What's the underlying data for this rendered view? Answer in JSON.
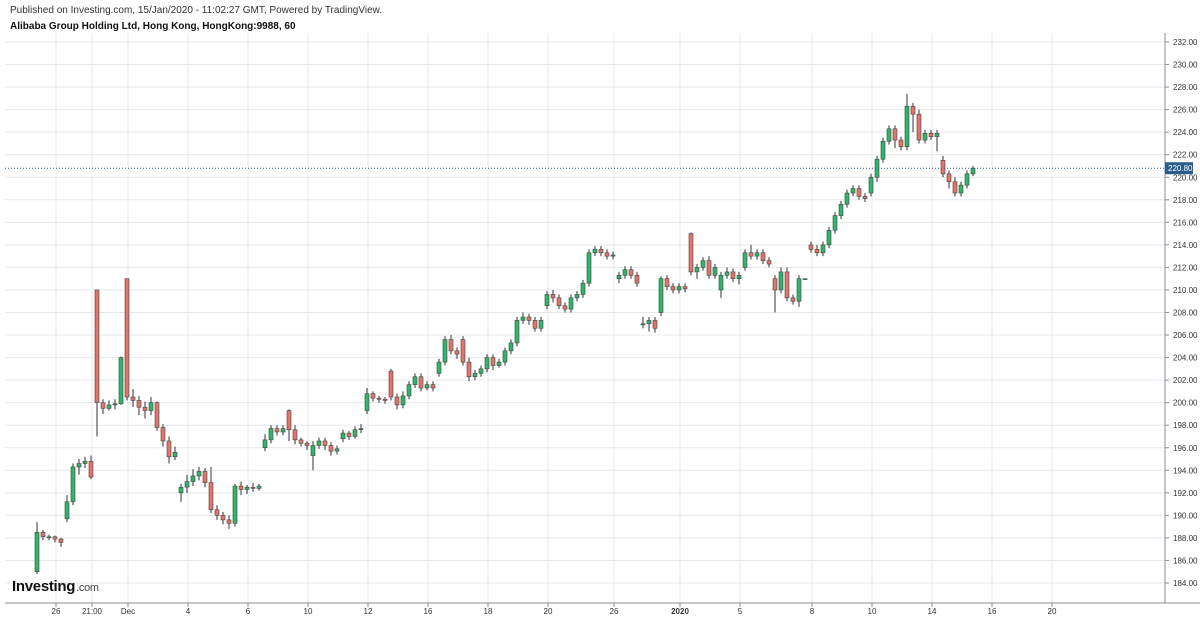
{
  "header": {
    "published": "Published on Investing.com, 15/Jan/2020 - 11:02:27 GMT, Powered by TradingView.",
    "title": "Alibaba Group Holding Ltd, Hong Kong, HongKong:9988, 60"
  },
  "logo": {
    "text": "Investing",
    "suffix": ".com"
  },
  "colors": {
    "up": "#2eb56b",
    "down": "#e4736a",
    "price_line": "#2a5d8a",
    "price_tag_bg": "#2a5d8a",
    "grid": "#e4e9ef",
    "axis": "#8a8f96"
  },
  "chart_data": {
    "type": "candlestick",
    "y_axis": {
      "position": "right",
      "range": [
        183,
        232.5
      ],
      "ticks": [
        "184.00",
        "186.00",
        "188.00",
        "190.00",
        "192.00",
        "194.00",
        "196.00",
        "198.00",
        "200.00",
        "202.00",
        "204.00",
        "206.00",
        "208.00",
        "210.00",
        "212.00",
        "214.00",
        "216.00",
        "218.00",
        "220.00",
        "222.00",
        "224.00",
        "226.00",
        "228.00",
        "230.00",
        "232.00"
      ]
    },
    "x_axis": {
      "ticks": [
        {
          "label": "26",
          "i": 1
        },
        {
          "label": "21:00",
          "i": 7
        },
        {
          "label": "Dec",
          "i": 13
        },
        {
          "label": "4",
          "i": 23
        },
        {
          "label": "6",
          "i": 33
        },
        {
          "label": "10",
          "i": 43
        },
        {
          "label": "12",
          "i": 53
        },
        {
          "label": "16",
          "i": 63
        },
        {
          "label": "18",
          "i": 73
        },
        {
          "label": "20",
          "i": 83
        },
        {
          "label": "26",
          "i": 94
        },
        {
          "label": "2020",
          "i": 105,
          "bold": true
        },
        {
          "label": "5",
          "i": 115
        },
        {
          "label": "8",
          "i": 127
        },
        {
          "label": "10",
          "i": 137
        },
        {
          "label": "14",
          "i": 147
        },
        {
          "label": "16",
          "i": 157
        },
        {
          "label": "20",
          "i": 167
        }
      ]
    },
    "last_price": "220.80",
    "candles": [
      [
        185.0,
        188.5,
        189.4,
        184.8
      ],
      [
        188.5,
        188.1,
        188.7,
        187.8
      ],
      [
        188.1,
        188.1,
        188.3,
        187.8
      ],
      [
        188.1,
        187.9,
        188.2,
        187.6
      ],
      [
        187.9,
        187.6,
        188.0,
        187.2
      ],
      [
        189.7,
        191.2,
        191.8,
        189.4
      ],
      [
        191.2,
        194.3,
        194.6,
        190.9
      ],
      [
        194.3,
        194.6,
        195.0,
        193.6
      ],
      [
        194.6,
        194.8,
        195.2,
        194.2
      ],
      [
        194.8,
        193.4,
        195.3,
        193.2
      ],
      [
        210.0,
        200.0,
        210.0,
        197.0
      ],
      [
        200.0,
        199.5,
        200.3,
        199.0
      ],
      [
        199.5,
        199.8,
        200.2,
        199.3
      ],
      [
        199.8,
        199.9,
        200.3,
        199.4
      ],
      [
        199.9,
        204.0,
        204.1,
        199.8
      ],
      [
        211.0,
        200.5,
        211.0,
        200.2
      ],
      [
        200.5,
        200.2,
        201.2,
        199.6
      ],
      [
        200.2,
        199.6,
        200.6,
        198.9
      ],
      [
        199.6,
        199.3,
        200.1,
        198.6
      ],
      [
        199.3,
        200.0,
        200.5,
        198.9
      ],
      [
        200.0,
        197.8,
        200.1,
        197.5
      ],
      [
        197.8,
        196.6,
        198.1,
        196.1
      ],
      [
        196.6,
        195.2,
        197.0,
        194.6
      ],
      [
        195.2,
        195.6,
        196.1,
        194.9
      ],
      [
        192.0,
        192.5,
        192.8,
        191.2
      ],
      [
        192.5,
        193.0,
        193.6,
        192.0
      ],
      [
        193.0,
        193.5,
        194.1,
        192.6
      ],
      [
        193.5,
        193.9,
        194.3,
        193.1
      ],
      [
        193.9,
        192.9,
        194.2,
        192.5
      ],
      [
        192.9,
        190.5,
        194.3,
        190.2
      ],
      [
        190.5,
        190.0,
        190.9,
        189.6
      ],
      [
        190.0,
        189.6,
        190.3,
        189.2
      ],
      [
        189.6,
        189.3,
        190.0,
        188.8
      ],
      [
        189.3,
        192.6,
        192.8,
        189.0
      ],
      [
        192.6,
        192.3,
        193.0,
        191.8
      ],
      [
        192.3,
        192.5,
        192.7,
        191.9
      ],
      [
        192.5,
        192.4,
        192.9,
        192.1
      ],
      [
        192.4,
        192.6,
        192.8,
        192.2
      ],
      [
        196.0,
        196.7,
        197.2,
        195.7
      ],
      [
        196.7,
        197.7,
        198.0,
        196.4
      ],
      [
        197.7,
        197.4,
        198.0,
        197.1
      ],
      [
        197.4,
        197.7,
        198.0,
        197.1
      ],
      [
        199.3,
        197.6,
        199.4,
        196.6
      ],
      [
        197.6,
        196.7,
        198.0,
        196.3
      ],
      [
        196.7,
        196.4,
        196.9,
        196.1
      ],
      [
        196.4,
        196.2,
        196.6,
        195.8
      ],
      [
        195.3,
        196.2,
        196.6,
        194.0
      ],
      [
        196.2,
        196.6,
        196.9,
        195.9
      ],
      [
        196.6,
        196.2,
        196.9,
        195.8
      ],
      [
        196.2,
        195.7,
        196.5,
        195.3
      ],
      [
        195.7,
        195.9,
        196.2,
        195.4
      ],
      [
        196.8,
        197.3,
        197.6,
        196.5
      ],
      [
        197.3,
        197.0,
        197.5,
        196.7
      ],
      [
        197.0,
        197.6,
        197.9,
        196.8
      ],
      [
        197.6,
        197.7,
        198.1,
        197.3
      ],
      [
        199.3,
        200.8,
        201.3,
        199.0
      ],
      [
        200.8,
        200.4,
        201.0,
        200.1
      ],
      [
        200.4,
        200.3,
        200.6,
        200.0
      ],
      [
        200.3,
        200.2,
        200.5,
        199.9
      ],
      [
        202.8,
        200.5,
        203.0,
        200.2
      ],
      [
        200.5,
        199.8,
        200.8,
        199.4
      ],
      [
        199.8,
        200.6,
        201.0,
        199.5
      ],
      [
        200.6,
        201.6,
        201.9,
        200.3
      ],
      [
        201.6,
        202.3,
        202.6,
        201.3
      ],
      [
        202.3,
        201.3,
        202.6,
        201.0
      ],
      [
        201.3,
        201.6,
        201.9,
        201.1
      ],
      [
        201.6,
        201.3,
        201.9,
        201.0
      ],
      [
        202.6,
        203.6,
        203.9,
        202.3
      ],
      [
        203.6,
        205.6,
        205.9,
        203.3
      ],
      [
        205.6,
        204.6,
        206.0,
        204.3
      ],
      [
        204.6,
        204.3,
        204.9,
        203.9
      ],
      [
        205.6,
        203.6,
        205.9,
        203.3
      ],
      [
        203.6,
        202.3,
        204.0,
        201.9
      ],
      [
        202.3,
        202.6,
        202.9,
        202.0
      ],
      [
        202.6,
        203.0,
        203.3,
        202.3
      ],
      [
        203.0,
        204.0,
        204.3,
        202.7
      ],
      [
        204.0,
        203.3,
        204.3,
        202.9
      ],
      [
        203.3,
        203.6,
        203.9,
        203.1
      ],
      [
        203.6,
        204.6,
        204.9,
        203.3
      ],
      [
        204.6,
        205.3,
        205.6,
        204.3
      ],
      [
        205.3,
        207.3,
        207.6,
        205.0
      ],
      [
        207.3,
        207.6,
        208.0,
        207.0
      ],
      [
        207.6,
        207.3,
        207.9,
        206.9
      ],
      [
        207.3,
        206.6,
        207.6,
        206.3
      ],
      [
        206.6,
        207.3,
        207.6,
        206.3
      ],
      [
        208.6,
        209.6,
        209.9,
        208.3
      ],
      [
        209.6,
        209.3,
        210.0,
        208.9
      ],
      [
        209.3,
        208.6,
        209.6,
        208.3
      ],
      [
        208.6,
        208.3,
        208.9,
        208.0
      ],
      [
        208.3,
        209.3,
        209.6,
        208.0
      ],
      [
        209.3,
        209.6,
        209.9,
        209.0
      ],
      [
        209.6,
        210.6,
        210.9,
        209.3
      ],
      [
        210.6,
        213.3,
        213.6,
        210.3
      ],
      [
        213.3,
        213.6,
        213.9,
        213.0
      ],
      [
        213.6,
        213.3,
        213.9,
        213.0
      ],
      [
        213.3,
        213.0,
        213.6,
        212.7
      ],
      [
        213.0,
        213.1,
        213.4,
        212.7
      ],
      [
        211.0,
        211.3,
        211.6,
        210.6
      ],
      [
        211.3,
        211.8,
        212.1,
        211.0
      ],
      [
        211.8,
        211.3,
        212.1,
        211.0
      ],
      [
        211.3,
        210.6,
        211.6,
        210.3
      ],
      [
        207.0,
        207.0,
        207.6,
        206.6
      ],
      [
        207.0,
        207.3,
        207.6,
        206.3
      ],
      [
        207.3,
        206.6,
        207.6,
        206.2
      ],
      [
        208.0,
        211.0,
        211.2,
        207.7
      ],
      [
        211.0,
        210.3,
        211.3,
        210.0
      ],
      [
        210.3,
        210.0,
        210.6,
        209.7
      ],
      [
        210.0,
        210.3,
        210.6,
        209.7
      ],
      [
        210.3,
        210.1,
        210.6,
        209.8
      ],
      [
        215.0,
        211.6,
        215.1,
        211.3
      ],
      [
        211.6,
        212.0,
        212.3,
        211.0
      ],
      [
        212.0,
        212.6,
        212.9,
        211.7
      ],
      [
        212.6,
        211.3,
        213.0,
        211.0
      ],
      [
        211.3,
        212.0,
        212.3,
        211.0
      ],
      [
        210.0,
        211.3,
        211.6,
        209.3
      ],
      [
        211.3,
        211.6,
        212.0,
        211.0
      ],
      [
        211.6,
        211.0,
        211.9,
        210.7
      ],
      [
        211.0,
        211.3,
        211.6,
        210.5
      ],
      [
        212.0,
        213.3,
        213.6,
        211.7
      ],
      [
        213.3,
        213.0,
        214.0,
        212.7
      ],
      [
        213.0,
        213.3,
        213.6,
        212.7
      ],
      [
        213.3,
        212.6,
        213.6,
        212.3
      ],
      [
        212.6,
        212.3,
        212.9,
        212.0
      ],
      [
        211.0,
        210.0,
        211.3,
        208.0
      ],
      [
        210.0,
        211.6,
        212.0,
        209.7
      ],
      [
        211.6,
        209.3,
        212.0,
        209.0
      ],
      [
        209.3,
        209.0,
        209.6,
        208.7
      ],
      [
        209.0,
        211.0,
        211.3,
        208.5
      ],
      [
        211.0,
        211.0,
        211.0,
        211.0
      ],
      [
        214.0,
        213.6,
        214.3,
        213.3
      ],
      [
        213.6,
        213.3,
        214.0,
        213.0
      ],
      [
        213.3,
        214.0,
        214.3,
        213.0
      ],
      [
        214.0,
        215.3,
        215.6,
        213.7
      ],
      [
        215.3,
        216.6,
        216.9,
        215.0
      ],
      [
        216.6,
        217.6,
        217.9,
        216.3
      ],
      [
        217.6,
        218.6,
        218.9,
        217.3
      ],
      [
        218.6,
        219.0,
        219.3,
        218.3
      ],
      [
        219.0,
        218.3,
        219.3,
        218.0
      ],
      [
        218.3,
        218.1,
        218.6,
        217.8
      ],
      [
        218.6,
        220.0,
        220.3,
        218.3
      ],
      [
        220.0,
        221.6,
        221.9,
        219.6
      ],
      [
        221.6,
        223.2,
        223.5,
        221.3
      ],
      [
        223.2,
        224.3,
        224.6,
        222.9
      ],
      [
        224.3,
        223.3,
        224.6,
        222.6
      ],
      [
        223.3,
        222.7,
        223.6,
        222.4
      ],
      [
        222.7,
        226.3,
        227.4,
        222.4
      ],
      [
        226.3,
        225.6,
        226.6,
        224.0
      ],
      [
        225.6,
        223.3,
        226.0,
        223.0
      ],
      [
        223.3,
        223.9,
        224.2,
        223.0
      ],
      [
        223.9,
        223.6,
        224.2,
        223.3
      ],
      [
        223.6,
        223.9,
        224.2,
        222.3
      ],
      [
        221.5,
        220.3,
        221.9,
        220.0
      ],
      [
        220.3,
        219.6,
        220.6,
        219.0
      ],
      [
        219.6,
        218.6,
        220.0,
        218.3
      ],
      [
        218.6,
        219.3,
        219.6,
        218.3
      ],
      [
        219.3,
        220.3,
        220.6,
        219.0
      ],
      [
        220.3,
        220.8,
        221.0,
        220.1
      ]
    ]
  }
}
